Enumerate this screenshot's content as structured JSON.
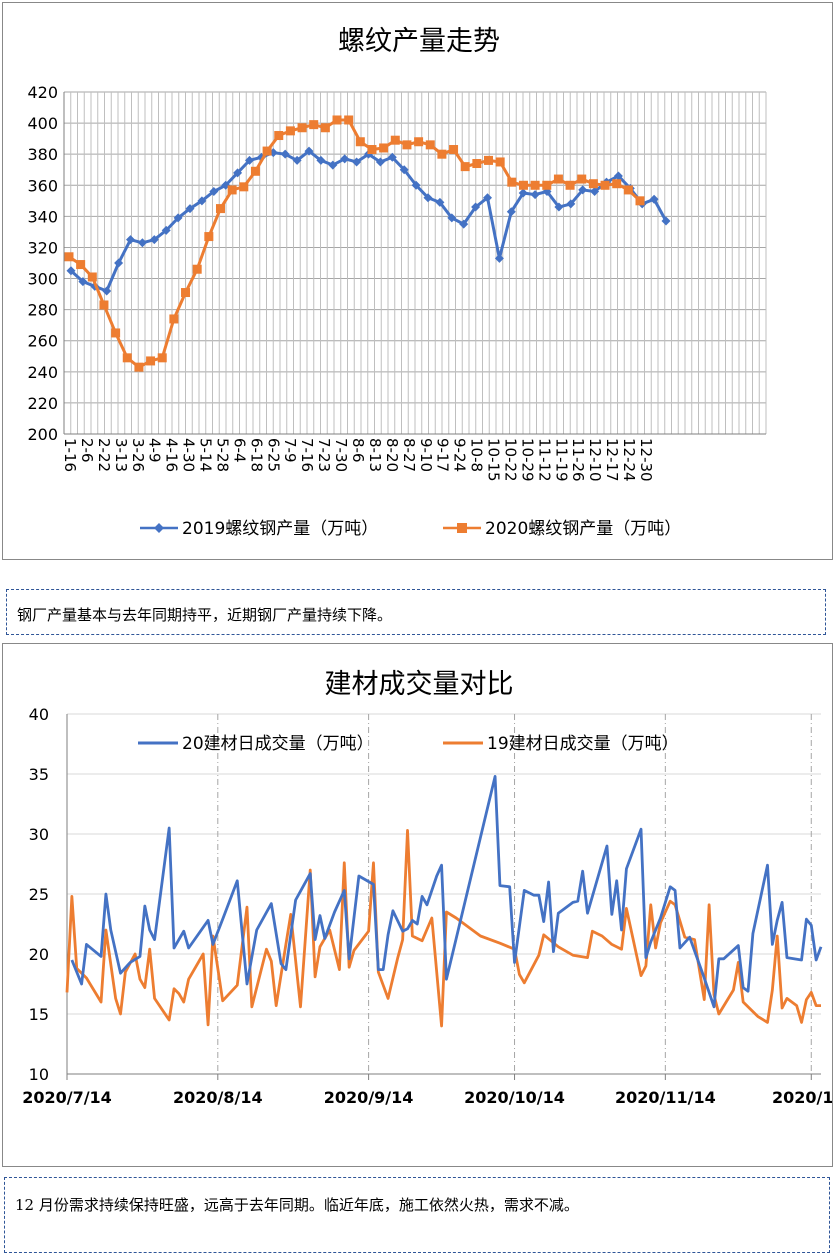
{
  "chart1": {
    "title": "螺纹产量走势",
    "ylim": [
      200,
      420
    ],
    "yticks": [
      200,
      220,
      240,
      260,
      280,
      300,
      320,
      340,
      360,
      380,
      400,
      420
    ],
    "categories": [
      "1-16",
      "2-6",
      "2-22",
      "3-13",
      "3-26",
      "4-9",
      "4-16",
      "4-30",
      "5-14",
      "5-28",
      "6-4",
      "6-18",
      "6-25",
      "7-9",
      "7-16",
      "7-23",
      "7-30",
      "8-6",
      "8-13",
      "8-20",
      "8-27",
      "9-10",
      "9-17",
      "9-24",
      "10-8",
      "10-15",
      "10-22",
      "10-29",
      "11-12",
      "11-19",
      "11-26",
      "12-10",
      "12-17",
      "12-24",
      "12-30"
    ],
    "tick_labels": [
      "1-16",
      "2-6",
      "2-22",
      "3-13",
      "3-26",
      "4-9",
      "4-16",
      "4-30",
      "5-14",
      "5-28",
      "6-4",
      "6-18",
      "6-25",
      "7-9",
      "7-16",
      "7-23",
      "7-30",
      "8-6",
      "8-13",
      "8-20",
      "8-27",
      "9-10",
      "9-17",
      "9-24",
      "10-8",
      "10-15",
      "10-22",
      "10-29",
      "11-12",
      "11-19",
      "11-26",
      "12-10",
      "12-17",
      "12-24",
      "12-30"
    ],
    "series_2019": {
      "name": "2019螺纹钢产量（万吨）",
      "color": "#4472c4",
      "values": [
        305,
        298,
        295,
        292,
        310,
        325,
        323,
        325,
        331,
        339,
        345,
        350,
        356,
        360,
        368,
        376,
        378,
        381,
        380,
        376,
        382,
        376,
        373,
        377,
        375,
        380,
        375,
        378,
        370,
        360,
        352,
        349,
        339,
        335,
        346,
        352,
        313,
        343,
        355,
        354,
        356,
        346,
        348,
        357,
        356,
        362,
        366,
        358,
        348,
        351,
        337
      ]
    },
    "series_2020": {
      "name": "2020螺纹钢产量（万吨）",
      "color": "#ed7d31",
      "values": [
        314,
        309,
        301,
        283,
        265,
        249,
        243,
        247,
        249,
        274,
        291,
        306,
        327,
        345,
        357,
        359,
        369,
        382,
        392,
        395,
        397,
        399,
        397,
        402,
        402,
        388,
        383,
        384,
        389,
        386,
        388,
        386,
        380,
        383,
        372,
        374,
        376,
        375,
        362,
        360,
        360,
        360,
        364,
        360,
        364,
        361,
        360,
        361,
        357,
        350
      ]
    }
  },
  "note1": "钢厂产量基本与去年同期持平，近期钢厂产量持续下降。",
  "chart2": {
    "title": "建材成交量对比",
    "ylim": [
      10,
      40
    ],
    "yticks": [
      10,
      15,
      20,
      25,
      30,
      35,
      40
    ],
    "x_range": [
      "2020/7/14",
      "2020/12/16"
    ],
    "xticks": [
      {
        "label": "2020/7/14",
        "day": 0
      },
      {
        "label": "2020/8/14",
        "day": 31
      },
      {
        "label": "2020/9/14",
        "day": 62
      },
      {
        "label": "2020/10/14",
        "day": 92
      },
      {
        "label": "2020/11/14",
        "day": 123
      },
      {
        "label": "2020/12/",
        "day": 153
      }
    ],
    "series_20": {
      "name": "20建材日成交量（万吨）",
      "color": "#4472c4",
      "points": [
        [
          1,
          19.5
        ],
        [
          3,
          17.5
        ],
        [
          4,
          20.8
        ],
        [
          7,
          19.8
        ],
        [
          8,
          25
        ],
        [
          9,
          22
        ],
        [
          11,
          18.4
        ],
        [
          13,
          19.3
        ],
        [
          15,
          19.8
        ],
        [
          16,
          24
        ],
        [
          17,
          22
        ],
        [
          18,
          21.2
        ],
        [
          21,
          30.5
        ],
        [
          22,
          20.5
        ],
        [
          24,
          21.9
        ],
        [
          25,
          20.5
        ],
        [
          29,
          22.8
        ],
        [
          30,
          20.8
        ],
        [
          32,
          22.9
        ],
        [
          35,
          26.1
        ],
        [
          37,
          17.5
        ],
        [
          39,
          22
        ],
        [
          42,
          24.2
        ],
        [
          44,
          19.2
        ],
        [
          45,
          18.7
        ],
        [
          47,
          24.5
        ],
        [
          50,
          26.7
        ],
        [
          51,
          21.2
        ],
        [
          52,
          23.2
        ],
        [
          53,
          21.3
        ],
        [
          55,
          23.5
        ],
        [
          57,
          25.3
        ],
        [
          58,
          19.6
        ],
        [
          60,
          26.5
        ],
        [
          63,
          25.8
        ],
        [
          64,
          18.7
        ],
        [
          65,
          18.7
        ],
        [
          66,
          21.6
        ],
        [
          67,
          23.6
        ],
        [
          69,
          21.9
        ],
        [
          70,
          22.1
        ],
        [
          71,
          22.8
        ],
        [
          72,
          22.5
        ],
        [
          73,
          24.8
        ],
        [
          74,
          24.1
        ],
        [
          76,
          26.5
        ],
        [
          77,
          27.4
        ],
        [
          78,
          17.9
        ],
        [
          88,
          34.8
        ],
        [
          89,
          25.7
        ],
        [
          91,
          25.6
        ],
        [
          92,
          19.3
        ],
        [
          94,
          25.3
        ],
        [
          96,
          24.9
        ],
        [
          97,
          24.9
        ],
        [
          98,
          22.7
        ],
        [
          99,
          26
        ],
        [
          100,
          20.2
        ],
        [
          101,
          23.4
        ],
        [
          104,
          24.3
        ],
        [
          105,
          24.4
        ],
        [
          106,
          26.9
        ],
        [
          107,
          23.4
        ],
        [
          111,
          29
        ],
        [
          112,
          23.3
        ],
        [
          113,
          26.1
        ],
        [
          114,
          22
        ],
        [
          115,
          27.1
        ],
        [
          118,
          30.4
        ],
        [
          119,
          19.7
        ],
        [
          120,
          21
        ],
        [
          122,
          23
        ],
        [
          124,
          25.6
        ],
        [
          125,
          25.3
        ],
        [
          126,
          20.5
        ],
        [
          128,
          21.4
        ],
        [
          131,
          18
        ],
        [
          133,
          15.6
        ],
        [
          134,
          19.6
        ],
        [
          135,
          19.6
        ],
        [
          138,
          20.7
        ],
        [
          139,
          17.2
        ],
        [
          140,
          16.9
        ],
        [
          141,
          21.7
        ],
        [
          144,
          27.4
        ],
        [
          145,
          20.8
        ],
        [
          146,
          22.8
        ],
        [
          147,
          24.3
        ],
        [
          148,
          19.7
        ],
        [
          151,
          19.5
        ],
        [
          152,
          22.9
        ],
        [
          153,
          22.4
        ],
        [
          154,
          19.5
        ],
        [
          155,
          20.6
        ]
      ]
    },
    "series_19": {
      "name": "19建材日成交量（万吨）",
      "color": "#ed7d31",
      "points": [
        [
          0,
          16.8
        ],
        [
          1,
          24.8
        ],
        [
          2,
          18.8
        ],
        [
          4,
          18
        ],
        [
          7,
          16
        ],
        [
          8,
          22
        ],
        [
          10,
          16.3
        ],
        [
          11,
          15
        ],
        [
          12,
          18.5
        ],
        [
          14,
          20
        ],
        [
          15,
          17.9
        ],
        [
          16,
          17.2
        ],
        [
          17,
          20.4
        ],
        [
          18,
          16.3
        ],
        [
          21,
          14.5
        ],
        [
          22,
          17.1
        ],
        [
          23,
          16.7
        ],
        [
          24,
          16
        ],
        [
          25,
          17.9
        ],
        [
          28,
          20
        ],
        [
          29,
          14.1
        ],
        [
          30,
          21.5
        ],
        [
          32,
          16.1
        ],
        [
          35,
          17.4
        ],
        [
          37,
          23.9
        ],
        [
          38,
          15.6
        ],
        [
          41,
          20.4
        ],
        [
          42,
          19.4
        ],
        [
          43,
          15.7
        ],
        [
          45,
          20.8
        ],
        [
          46,
          23.3
        ],
        [
          48,
          15.6
        ],
        [
          50,
          27
        ],
        [
          51,
          18.1
        ],
        [
          52,
          20.6
        ],
        [
          54,
          22
        ],
        [
          56,
          18.7
        ],
        [
          57,
          27.6
        ],
        [
          58,
          18.9
        ],
        [
          59,
          20.3
        ],
        [
          62,
          21.9
        ],
        [
          63,
          27.6
        ],
        [
          64,
          18.5
        ],
        [
          66,
          16.3
        ],
        [
          68,
          19.7
        ],
        [
          69,
          21.2
        ],
        [
          70,
          30.3
        ],
        [
          71,
          21.5
        ],
        [
          73,
          21.1
        ],
        [
          75,
          23
        ],
        [
          77,
          14
        ],
        [
          78,
          23.5
        ],
        [
          80,
          23
        ],
        [
          85,
          21.5
        ],
        [
          89,
          20.9
        ],
        [
          92,
          20.4
        ],
        [
          93,
          18.3
        ],
        [
          94,
          17.6
        ],
        [
          97,
          19.9
        ],
        [
          98,
          21.6
        ],
        [
          101,
          20.6
        ],
        [
          104,
          19.9
        ],
        [
          107,
          19.7
        ],
        [
          108,
          21.9
        ],
        [
          110,
          21.5
        ],
        [
          112,
          20.8
        ],
        [
          114,
          20.4
        ],
        [
          115,
          23.8
        ],
        [
          118,
          18.2
        ],
        [
          119,
          19
        ],
        [
          120,
          24.1
        ],
        [
          121,
          20.5
        ],
        [
          122,
          22.6
        ],
        [
          124,
          24.4
        ],
        [
          125,
          24.1
        ],
        [
          127,
          21.4
        ],
        [
          129,
          21.2
        ],
        [
          131,
          16.2
        ],
        [
          132,
          24.1
        ],
        [
          133,
          16.6
        ],
        [
          134,
          15
        ],
        [
          137,
          17
        ],
        [
          138,
          19.3
        ],
        [
          139,
          16
        ],
        [
          142,
          14.8
        ],
        [
          144,
          14.3
        ],
        [
          145,
          17
        ],
        [
          146,
          21.5
        ],
        [
          147,
          15.5
        ],
        [
          148,
          16.3
        ],
        [
          150,
          15.7
        ],
        [
          151,
          14.3
        ],
        [
          152,
          16.2
        ],
        [
          153,
          16.8
        ],
        [
          154,
          15.7
        ],
        [
          155,
          15.7
        ]
      ]
    }
  },
  "note2": "12 月份需求持续保持旺盛，远高于去年同期。临近年底，施工依然火热，需求不减。"
}
